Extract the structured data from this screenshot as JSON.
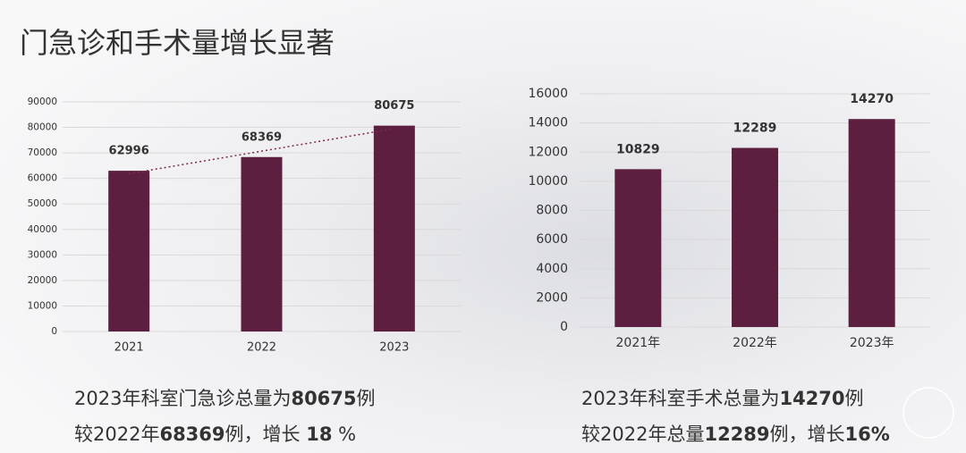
{
  "page": {
    "title": "门急诊和手术量增长显著"
  },
  "chart_data": [
    {
      "type": "bar",
      "categories": [
        "2021",
        "2022",
        "2023"
      ],
      "values": [
        62996,
        68369,
        80675
      ],
      "color": "#5c1f3f",
      "ylim": [
        0,
        90000
      ],
      "yticks": [
        0,
        10000,
        20000,
        30000,
        40000,
        50000,
        60000,
        70000,
        80000,
        90000
      ],
      "grid": true,
      "trendline": "linear",
      "trendline_color": "#7a2a45"
    },
    {
      "type": "bar",
      "categories": [
        "2021年",
        "2022年",
        "2023年"
      ],
      "values": [
        10829,
        12289,
        14270
      ],
      "color": "#5c1f3f",
      "ylim": [
        0,
        16000
      ],
      "yticks": [
        0,
        2000,
        4000,
        6000,
        8000,
        10000,
        12000,
        14000,
        16000
      ],
      "grid": true
    }
  ],
  "captions": [
    [
      {
        "text": "2023年科室门急诊总量为",
        "bold": false
      },
      {
        "text": "80675",
        "bold": true
      },
      {
        "text": "例",
        "bold": false
      }
    ],
    [
      {
        "text": "较2022年",
        "bold": false
      },
      {
        "text": "68369",
        "bold": true
      },
      {
        "text": "例，增长 ",
        "bold": false
      },
      {
        "text": "18",
        "bold": true
      },
      {
        "text": " %",
        "bold": false
      }
    ],
    [
      {
        "text": "2023年科室手术总量为",
        "bold": false
      },
      {
        "text": "14270",
        "bold": true
      },
      {
        "text": "例",
        "bold": false
      }
    ],
    [
      {
        "text": "较2022年总量",
        "bold": false
      },
      {
        "text": "12289",
        "bold": true
      },
      {
        "text": "例，增长",
        "bold": false
      },
      {
        "text": "16%",
        "bold": true
      }
    ]
  ]
}
